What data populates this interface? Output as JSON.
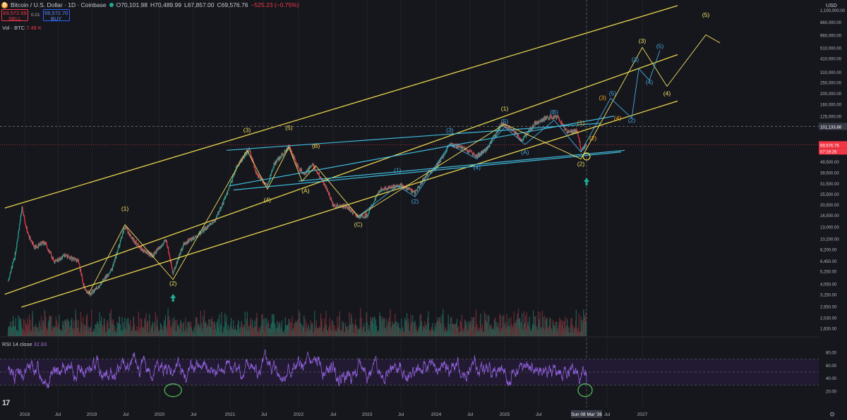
{
  "header": {
    "symbol": "Bitcoin / U.S. Dollar · 1D · Coinbase",
    "open": "O70,101.98",
    "high": "H70,489.99",
    "low": "L67,857.00",
    "close": "C69,576.76",
    "change": "−525.23 (−0.75%)",
    "sell_price": "69,572.69",
    "sell_label": "SELL",
    "spread": "0.01",
    "buy_price": "69,572.70",
    "buy_label": "BUY",
    "vol_label": "Vol · BTC",
    "vol_value": "7.49 K",
    "rsi_label": "RSI 14 close",
    "rsi_value": "32.83",
    "currency": "USD",
    "logo_text": "17"
  },
  "colors": {
    "background": "#16171d",
    "channel_yellow": "#e8d44d",
    "cyan_lines": "#3fb8d8",
    "elliott_yellow": "#f0e060",
    "elliott_orange": "#f5a623",
    "elliott_blue": "#47a9e0",
    "up_candle": "#22ab94",
    "down_candle": "#f23645",
    "rsi_line": "#8e60d8",
    "arrow": "#22ab94",
    "circle": "#4caf50"
  },
  "chart_data": {
    "type": "line",
    "log_scale": true,
    "title": "Bitcoin / U.S. Dollar · 1D · Coinbase",
    "ylim": [
      1380,
      1200000
    ],
    "y_ticks": [
      1100000,
      860000,
      660000,
      510000,
      410000,
      310000,
      250000,
      200000,
      160000,
      125000,
      101133.86,
      69576.76,
      61000,
      49500,
      39500,
      31500,
      25500,
      20500,
      16500,
      13000,
      10200,
      8200,
      6450,
      5250,
      4050,
      3250,
      2550,
      2030,
      1630
    ],
    "y_tick_labels": [
      "1,100,000.00",
      "860,000.00",
      "660,000.00",
      "510,000.00",
      "410,000.00",
      "310,000.00",
      "250,000.00",
      "200,000.00",
      "160,000.00",
      "125,000.00",
      "101,133.86",
      "69,576.76",
      "61,000.00",
      "49,500.00",
      "39,500.00",
      "31,500.00",
      "25,500.00",
      "20,500.00",
      "16,500.00",
      "13,000.00",
      "10,200.00",
      "8,200.00",
      "6,450.00",
      "5,250.00",
      "4,050.00",
      "3,250.00",
      "2,550.00",
      "2,030.00",
      "1,630.00"
    ],
    "highlight_labels": {
      "crosshair": "101,133.86",
      "last_price": "69,576.76",
      "countdown": "07:19:26"
    },
    "x_ticks": [
      "2018",
      "Jul",
      "2019",
      "Jul",
      "2020",
      "Jul",
      "2021",
      "Jul",
      "2022",
      "Jul",
      "2023",
      "Jul",
      "2024",
      "Jul",
      "2025",
      "Jul",
      "Sun 08 Mar '26",
      "Jul",
      "2027"
    ],
    "x_tick_dates": [
      2018.0,
      2018.5,
      2019.0,
      2019.5,
      2020.0,
      2020.5,
      2021.0,
      2021.5,
      2022.0,
      2022.5,
      2023.0,
      2023.5,
      2024.0,
      2024.5,
      2025.0,
      2025.5,
      2026.18,
      2026.5,
      2027.0
    ],
    "series": [
      {
        "name": "BTCUSD",
        "points": [
          [
            2017.75,
            4300
          ],
          [
            2017.85,
            7000
          ],
          [
            2017.96,
            19000
          ],
          [
            2018.05,
            11000
          ],
          [
            2018.15,
            8500
          ],
          [
            2018.3,
            9500
          ],
          [
            2018.45,
            6300
          ],
          [
            2018.6,
            7200
          ],
          [
            2018.8,
            6400
          ],
          [
            2018.9,
            3500
          ],
          [
            2018.98,
            3300
          ],
          [
            2019.1,
            3800
          ],
          [
            2019.3,
            5500
          ],
          [
            2019.49,
            13000
          ],
          [
            2019.6,
            10200
          ],
          [
            2019.75,
            8000
          ],
          [
            2019.9,
            7200
          ],
          [
            2020.1,
            9800
          ],
          [
            2020.2,
            5000
          ],
          [
            2020.35,
            9000
          ],
          [
            2020.6,
            11500
          ],
          [
            2020.8,
            15000
          ],
          [
            2020.95,
            25000
          ],
          [
            2021.1,
            45000
          ],
          [
            2021.28,
            63000
          ],
          [
            2021.4,
            37000
          ],
          [
            2021.55,
            30000
          ],
          [
            2021.65,
            47000
          ],
          [
            2021.86,
            67000
          ],
          [
            2022.0,
            43000
          ],
          [
            2022.1,
            38000
          ],
          [
            2022.2,
            47000
          ],
          [
            2022.4,
            29000
          ],
          [
            2022.5,
            20000
          ],
          [
            2022.7,
            19500
          ],
          [
            2022.87,
            15800
          ],
          [
            2023.0,
            16500
          ],
          [
            2023.2,
            28000
          ],
          [
            2023.5,
            30500
          ],
          [
            2023.7,
            26000
          ],
          [
            2023.85,
            37000
          ],
          [
            2024.0,
            44000
          ],
          [
            2024.2,
            70000
          ],
          [
            2024.4,
            65000
          ],
          [
            2024.6,
            55000
          ],
          [
            2024.75,
            64000
          ],
          [
            2024.95,
            106000
          ],
          [
            2025.1,
            97000
          ],
          [
            2025.25,
            76000
          ],
          [
            2025.45,
            108000
          ],
          [
            2025.6,
            120000
          ],
          [
            2025.77,
            124000
          ],
          [
            2025.9,
            90000
          ],
          [
            2026.05,
            92000
          ],
          [
            2026.1,
            63000
          ],
          [
            2026.18,
            69576.76
          ]
        ]
      }
    ],
    "channels": [
      {
        "name": "upper",
        "from": [
          2017.7,
          19000
        ],
        "to": [
          2027.5,
          1200000
        ]
      },
      {
        "name": "middle",
        "from": [
          2017.7,
          3250
        ],
        "to": [
          2027.5,
          440000
        ]
      },
      {
        "name": "lower",
        "from": [
          2017.95,
          2500
        ],
        "to": [
          2027.5,
          170000
        ]
      }
    ],
    "elliott_labels": [
      {
        "text": "(1)",
        "x": 2019.49,
        "y": 18000,
        "color": "yellow"
      },
      {
        "text": "(2)",
        "x": 2020.2,
        "y": 3900,
        "color": "yellow"
      },
      {
        "text": "(3)",
        "x": 2021.25,
        "y": 90000,
        "color": "yellow"
      },
      {
        "text": "(4)",
        "x": 2021.55,
        "y": 21500,
        "color": "yellow"
      },
      {
        "text": "(5)",
        "x": 2021.86,
        "y": 95000,
        "color": "yellow"
      },
      {
        "text": "(A)",
        "x": 2022.1,
        "y": 26000,
        "color": "yellow"
      },
      {
        "text": "(B)",
        "x": 2022.25,
        "y": 65000,
        "color": "yellow"
      },
      {
        "text": "(C)",
        "x": 2022.87,
        "y": 13000,
        "color": "yellow"
      },
      {
        "text": "(1)",
        "x": 2025.0,
        "y": 140000,
        "color": "yellow"
      },
      {
        "text": "(2)",
        "x": 2026.1,
        "y": 45000,
        "color": "yellow"
      },
      {
        "text": "(3)",
        "x": 2027.0,
        "y": 560000,
        "color": "yellow"
      },
      {
        "text": "(4)",
        "x": 2027.35,
        "y": 190000,
        "color": "yellow"
      },
      {
        "text": "(5)",
        "x": 2027.9,
        "y": 950000,
        "color": "yellow"
      },
      {
        "text": "(1)",
        "x": 2023.45,
        "y": 39500,
        "color": "blue"
      },
      {
        "text": "(2)",
        "x": 2023.7,
        "y": 21000,
        "color": "blue"
      },
      {
        "text": "(3)",
        "x": 2024.2,
        "y": 90000,
        "color": "blue"
      },
      {
        "text": "(4)",
        "x": 2024.6,
        "y": 42000,
        "color": "blue"
      },
      {
        "text": "(5)",
        "x": 2025.0,
        "y": 108000,
        "color": "blue"
      },
      {
        "text": "(A)",
        "x": 2025.3,
        "y": 57000,
        "color": "blue"
      },
      {
        "text": "(B)",
        "x": 2025.72,
        "y": 130000,
        "color": "blue"
      },
      {
        "text": "(1)",
        "x": 2026.1,
        "y": 105000,
        "color": "orange"
      },
      {
        "text": "(2)",
        "x": 2026.28,
        "y": 76000,
        "color": "orange"
      },
      {
        "text": "(3)",
        "x": 2026.43,
        "y": 175000,
        "color": "orange"
      },
      {
        "text": "(4)",
        "x": 2026.65,
        "y": 115000,
        "color": "orange"
      },
      {
        "text": "(5)",
        "x": 2026.58,
        "y": 190000,
        "color": "blue"
      },
      {
        "text": "(2)",
        "x": 2026.85,
        "y": 110000,
        "color": "blue"
      },
      {
        "text": "(3)",
        "x": 2026.9,
        "y": 380000,
        "color": "blue"
      },
      {
        "text": "(4)",
        "x": 2027.1,
        "y": 240000,
        "color": "blue"
      },
      {
        "text": "(5)",
        "x": 2027.25,
        "y": 500000,
        "color": "blue"
      }
    ],
    "rsi": {
      "name": "RSI 14 close",
      "value": 32.83,
      "levels": [
        70,
        30
      ],
      "y_ticks": [
        80,
        60,
        40,
        20
      ],
      "y_tick_labels": [
        "80.00",
        "60.00",
        "40.00",
        "20.00"
      ]
    },
    "legend": "none"
  }
}
